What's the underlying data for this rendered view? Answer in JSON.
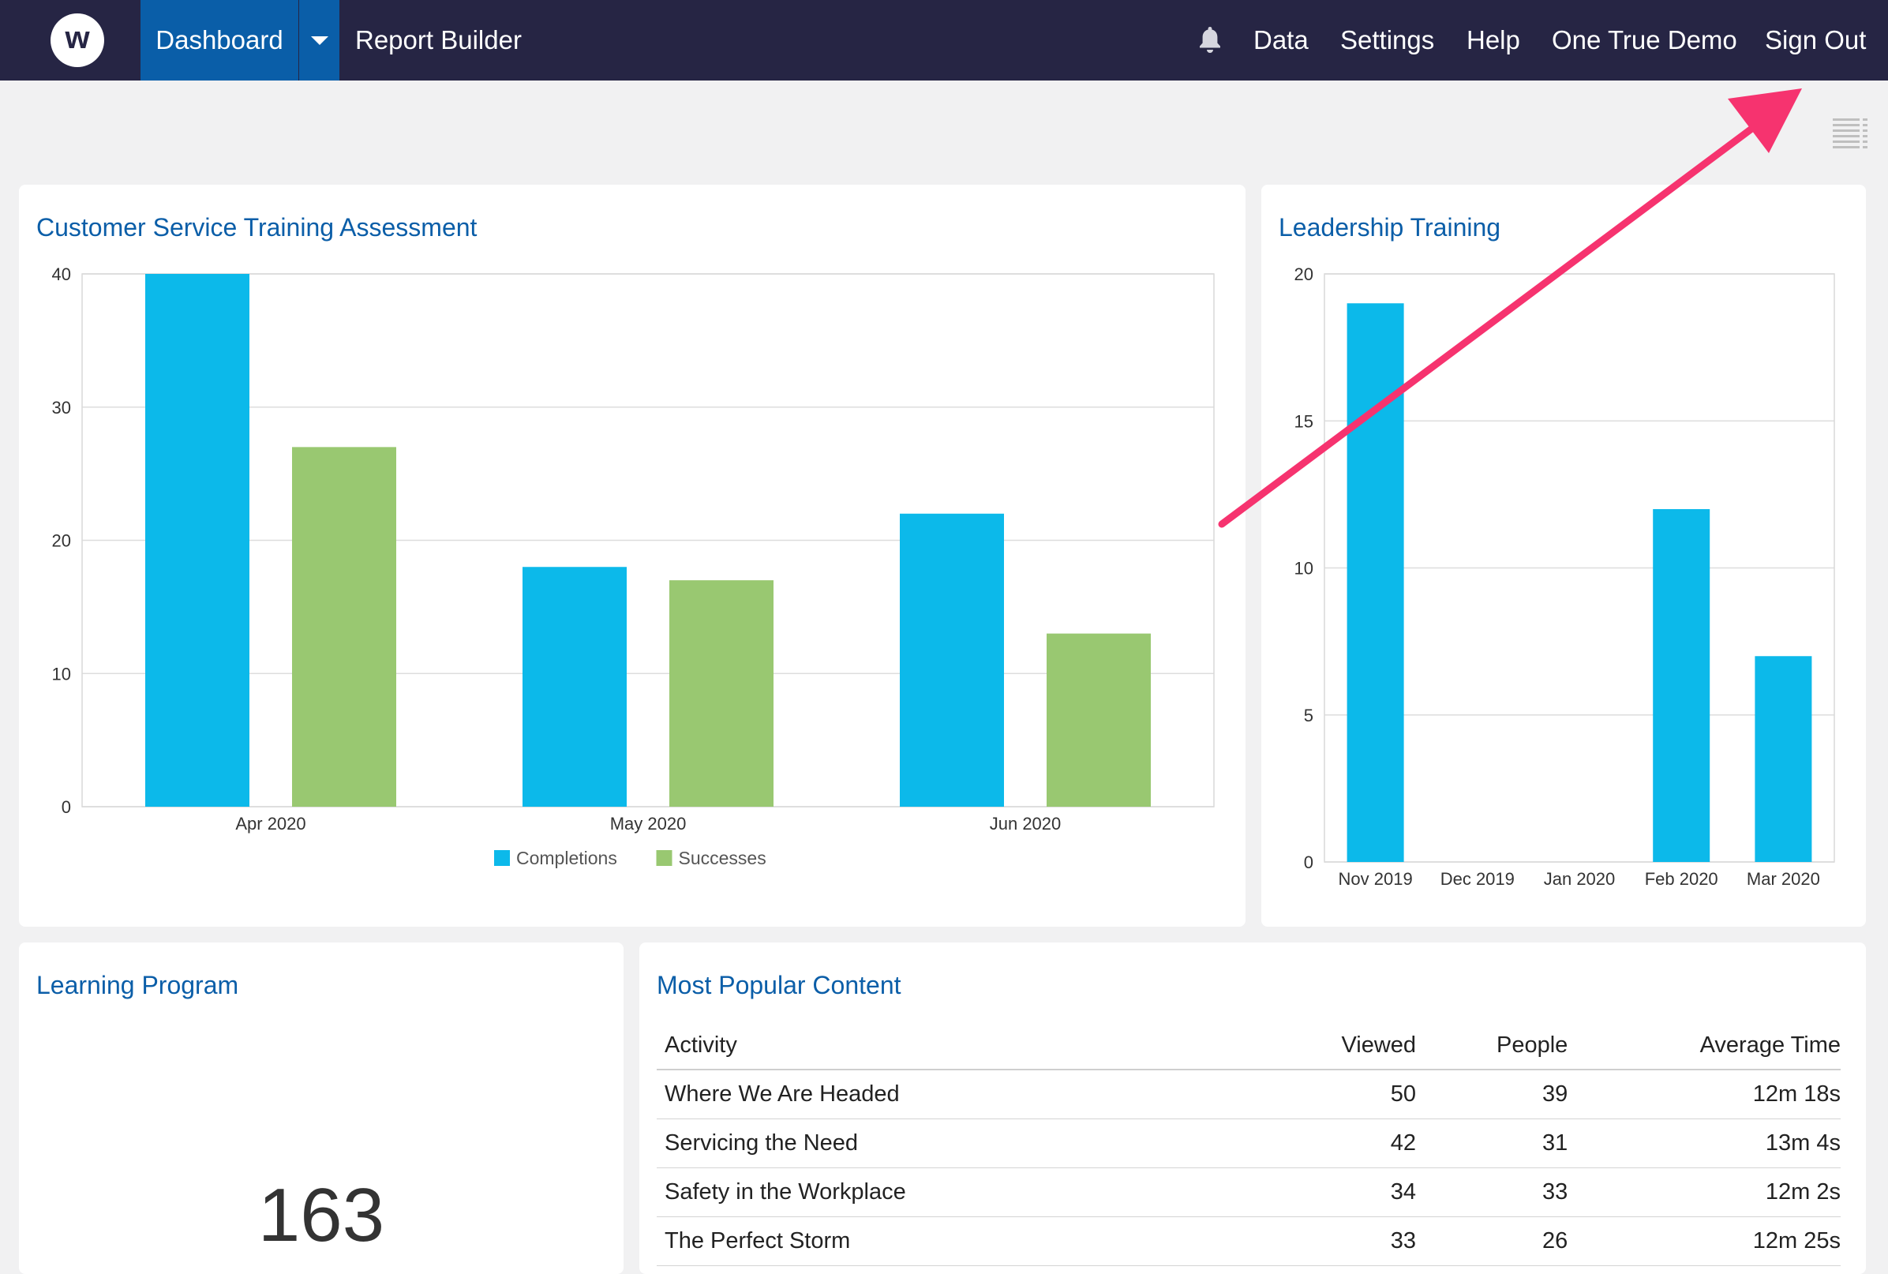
{
  "nav": {
    "logo_letter": "w",
    "dashboard_label": "Dashboard",
    "report_builder_label": "Report Builder",
    "data_label": "Data",
    "settings_label": "Settings",
    "help_label": "Help",
    "account_label": "One True Demo",
    "sign_out_label": "Sign Out",
    "bar_color": "#262544",
    "active_color": "#0a5ea8"
  },
  "cards": {
    "customer_service": {
      "title": "Customer Service Training Assessment"
    },
    "leadership": {
      "title": "Leadership Training"
    },
    "learning_program": {
      "title": "Learning Program",
      "value": "163"
    },
    "popular": {
      "title": "Most Popular Content",
      "headers": [
        "Activity",
        "Viewed",
        "People",
        "Average Time"
      ],
      "rows": [
        [
          "Where We Are Headed",
          "50",
          "39",
          "12m 18s"
        ],
        [
          "Servicing the Need",
          "42",
          "31",
          "13m 4s"
        ],
        [
          "Safety in the Workplace",
          "34",
          "33",
          "12m 2s"
        ],
        [
          "The Perfect Storm",
          "33",
          "26",
          "12m 25s"
        ]
      ]
    }
  },
  "chart_data": [
    {
      "type": "bar",
      "title": "Customer Service Training Assessment",
      "categories": [
        "Apr 2020",
        "May 2020",
        "Jun 2020"
      ],
      "series": [
        {
          "name": "Completions",
          "values": [
            40,
            18,
            22
          ],
          "color": "#0cb9ea"
        },
        {
          "name": "Successes",
          "values": [
            27,
            17,
            13
          ],
          "color": "#99c871"
        }
      ],
      "ylim": [
        0,
        40
      ],
      "yticks": [
        0,
        10,
        20,
        30,
        40
      ],
      "grid": true,
      "legend": "bottom"
    },
    {
      "type": "bar",
      "title": "Leadership Training",
      "categories": [
        "Nov 2019",
        "Dec 2019",
        "Jan 2020",
        "Feb 2020",
        "Mar 2020"
      ],
      "series": [
        {
          "values": [
            19,
            0,
            0,
            12,
            7
          ],
          "color": "#0cb9ea"
        }
      ],
      "ylim": [
        0,
        20
      ],
      "yticks": [
        0,
        5,
        10,
        15,
        20
      ],
      "grid": true
    }
  ],
  "annotation": {
    "arrow_color": "#f6336f"
  }
}
